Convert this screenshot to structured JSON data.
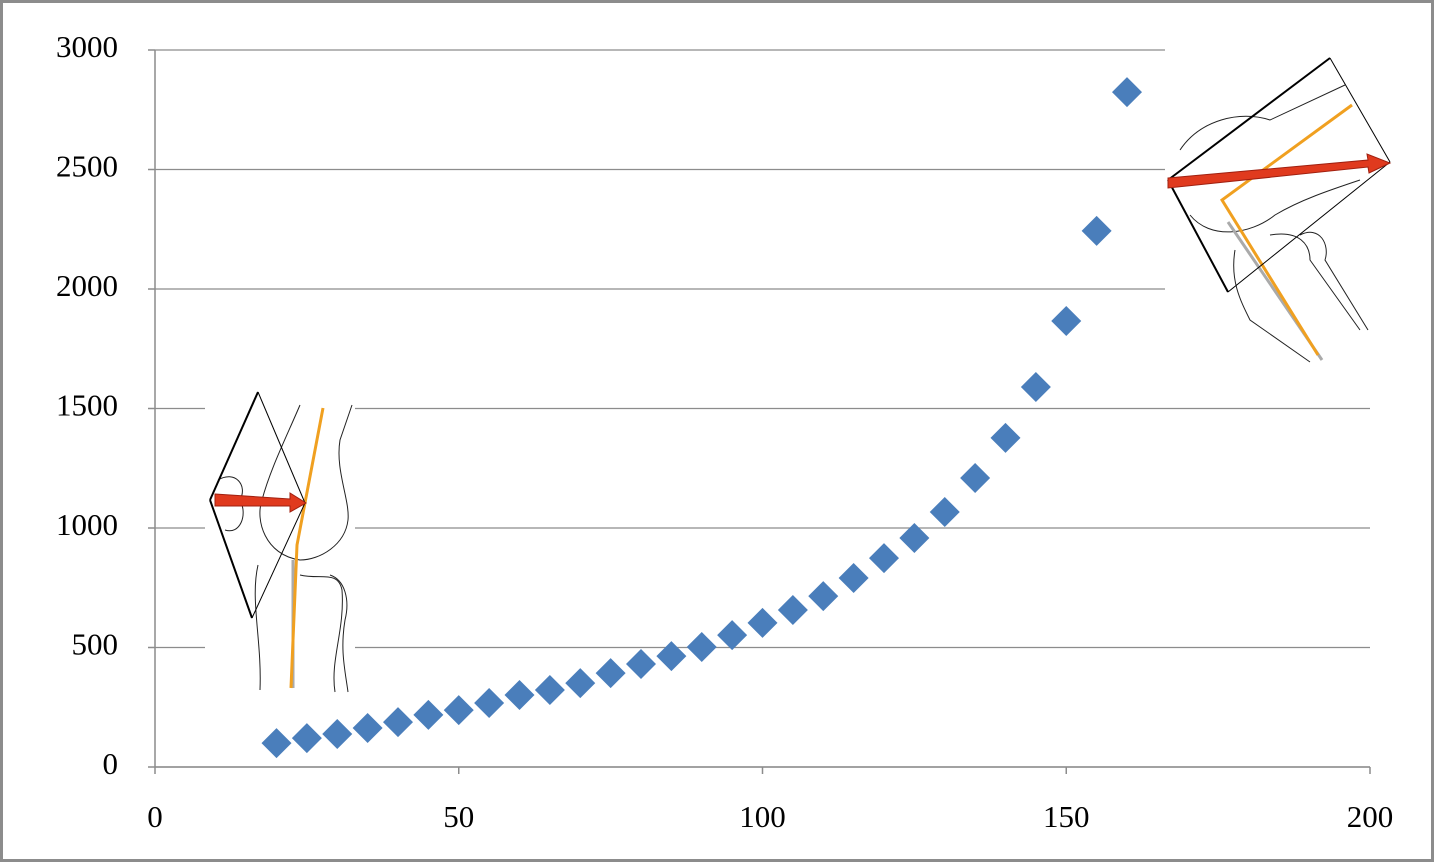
{
  "chart_data": {
    "type": "scatter",
    "x": [
      20,
      25,
      30,
      35,
      40,
      45,
      50,
      55,
      60,
      65,
      70,
      75,
      80,
      85,
      90,
      95,
      100,
      105,
      110,
      115,
      120,
      125,
      130,
      135,
      140,
      145,
      150,
      155,
      160
    ],
    "values": [
      100,
      121,
      138,
      163,
      188,
      218,
      238,
      268,
      301,
      322,
      351,
      393,
      431,
      464,
      502,
      552,
      603,
      657,
      715,
      791,
      874,
      958,
      1067,
      1209,
      1377,
      1590,
      1866,
      2243,
      2824
    ],
    "color": "#4a7ebb",
    "xlim": [
      0,
      200
    ],
    "xticks": [
      0,
      50,
      100,
      150,
      200
    ],
    "ylim": [
      0,
      3000
    ],
    "yticks": [
      0,
      500,
      1000,
      1500,
      2000,
      2500,
      3000
    ],
    "grid": true
  }
}
